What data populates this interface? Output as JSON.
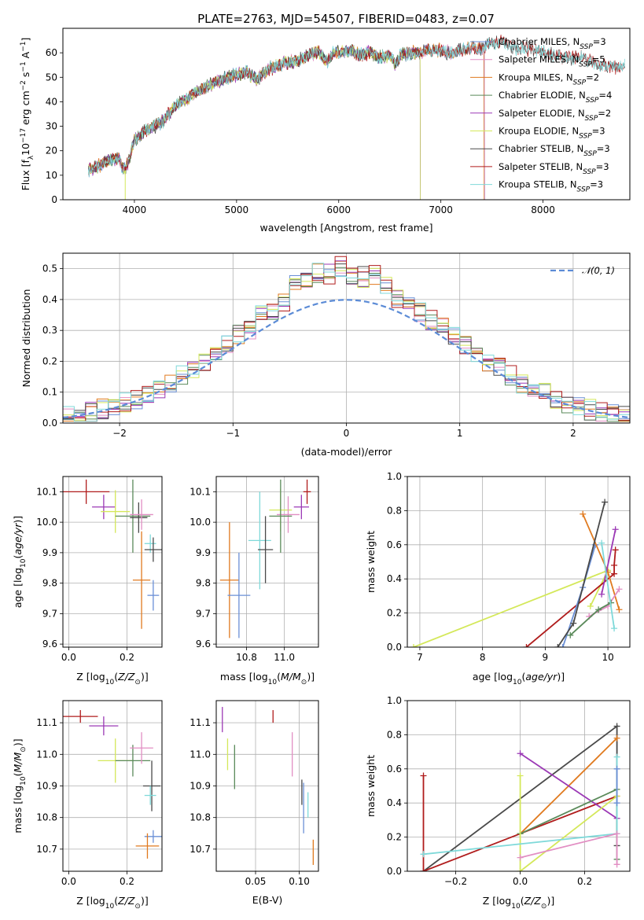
{
  "title": "PLATE=2763, MJD=54507, FIBERID=0483, z=0.07",
  "colors": {
    "Chabrier MILES": "#6a8fd6",
    "Salpeter MILES": "#e28ec3",
    "Kroupa MILES": "#e07a1f",
    "Chabrier ELODIE": "#5a8a5a",
    "Salpeter ELODIE": "#9b39b5",
    "Kroupa ELODIE": "#d4e85a",
    "Chabrier STELIB": "#4a4a4a",
    "Salpeter STELIB": "#b01c1c",
    "Kroupa STELIB": "#7fd9d9",
    "gauss": "#5b8bd6"
  },
  "chart_data": [
    {
      "id": "spectrum",
      "type": "line",
      "title": "PLATE=2763, MJD=54507, FIBERID=0483, z=0.07",
      "xlabel": "wavelength [Angstrom, rest frame]",
      "ylabel": "Flux [fλ10⁻¹⁷ erg cm⁻² s⁻¹ A⁻¹]",
      "xlim": [
        3300,
        8850
      ],
      "ylim": [
        0,
        70
      ],
      "xticks": [
        4000,
        5000,
        6000,
        7000,
        8000
      ],
      "yticks": [
        0,
        10,
        20,
        30,
        40,
        50,
        60
      ],
      "legend": "upper right",
      "legend_entries": [
        {
          "label": "Chabrier MILES",
          "nssp": "3"
        },
        {
          "label": "Salpeter MILES",
          "nssp": "5"
        },
        {
          "label": "Kroupa MILES",
          "nssp": "2"
        },
        {
          "label": "Chabrier ELODIE",
          "nssp": "4"
        },
        {
          "label": "Salpeter ELODIE",
          "nssp": "2"
        },
        {
          "label": "Kroupa ELODIE",
          "nssp": "3"
        },
        {
          "label": "Chabrier STELIB",
          "nssp": "3"
        },
        {
          "label": "Salpeter STELIB",
          "nssp": "3"
        },
        {
          "label": "Kroupa STELIB",
          "nssp": "3"
        }
      ],
      "continuum": [
        [
          3550,
          12
        ],
        [
          3650,
          14
        ],
        [
          3750,
          16
        ],
        [
          3850,
          17
        ],
        [
          3900,
          12
        ],
        [
          3950,
          16
        ],
        [
          4000,
          24
        ],
        [
          4100,
          28
        ],
        [
          4200,
          30
        ],
        [
          4300,
          33
        ],
        [
          4400,
          38
        ],
        [
          4500,
          41
        ],
        [
          4600,
          44
        ],
        [
          4700,
          46
        ],
        [
          4800,
          48
        ],
        [
          4900,
          50
        ],
        [
          5000,
          51
        ],
        [
          5100,
          52
        ],
        [
          5200,
          49
        ],
        [
          5300,
          53
        ],
        [
          5400,
          55
        ],
        [
          5500,
          56
        ],
        [
          5600,
          57
        ],
        [
          5700,
          59
        ],
        [
          5800,
          60
        ],
        [
          5890,
          56
        ],
        [
          5950,
          60
        ],
        [
          6000,
          60
        ],
        [
          6100,
          61
        ],
        [
          6200,
          59
        ],
        [
          6300,
          60
        ],
        [
          6400,
          58
        ],
        [
          6500,
          59
        ],
        [
          6563,
          55
        ],
        [
          6600,
          59
        ],
        [
          6700,
          60
        ],
        [
          6800,
          60
        ],
        [
          6900,
          61
        ],
        [
          7000,
          61
        ],
        [
          7100,
          60
        ],
        [
          7200,
          61
        ],
        [
          7300,
          62
        ],
        [
          7400,
          62
        ],
        [
          7500,
          64
        ],
        [
          7600,
          65
        ],
        [
          7700,
          62
        ],
        [
          7800,
          62
        ],
        [
          7900,
          61
        ],
        [
          8000,
          61
        ],
        [
          8100,
          59
        ],
        [
          8200,
          58
        ],
        [
          8300,
          58
        ],
        [
          8400,
          58
        ],
        [
          8500,
          56
        ],
        [
          8600,
          55
        ],
        [
          8700,
          54
        ],
        [
          8800,
          55
        ]
      ],
      "endpoints": {
        "Chabrier MILES": 7430,
        "Salpeter MILES": 7430,
        "Kroupa MILES": 7420,
        "Chabrier ELODIE": 6800,
        "Salpeter ELODIE": 6800,
        "Kroupa ELODIE": 6800,
        "Chabrier STELIB": 8800,
        "Salpeter STELIB": 8800,
        "Kroupa STELIB": 8800
      }
    },
    {
      "id": "residuals",
      "type": "histogram",
      "xlabel": "(data-model)/error",
      "ylabel": "Normed distribution",
      "xlim": [
        -2.5,
        2.5
      ],
      "ylim": [
        0,
        0.55
      ],
      "xticks": [
        -2,
        -1,
        0,
        1,
        2
      ],
      "yticks": [
        0.0,
        0.1,
        0.2,
        0.3,
        0.4,
        0.5
      ],
      "legend": "upper right",
      "gauss_label": "𝒩(0, 1)",
      "bin_width": 0.1,
      "bin_start": -2.5,
      "base_offsets": [
        0.0,
        0.0,
        0.0,
        0.0,
        0.0,
        0.0,
        0.0,
        0.0,
        0.0,
        0.0,
        0.0,
        0.0,
        0.0,
        0.0,
        0.0,
        0.01,
        -0.01,
        0.02,
        0.0,
        0.01,
        0.05,
        0.04,
        0.06,
        0.05,
        0.07,
        0.03,
        0.04,
        0.05,
        0.03,
        0.01,
        0.02,
        0.0,
        0.0,
        0.0,
        0.0,
        0.0,
        0.0,
        0.0,
        0.0,
        0.0,
        0.0,
        0.0,
        0.0,
        0.0,
        0.0,
        0.0,
        0.0,
        0.0,
        0.0,
        0.0
      ]
    },
    {
      "id": "age-vs-Z",
      "type": "scatter",
      "xlabel": "Z [log₁₀(Z/Z⊙)]",
      "ylabel": "age  [log₁₀(age/yr)]",
      "xlim": [
        -0.02,
        0.32
      ],
      "ylim": [
        9.59,
        10.15
      ],
      "xticks": [
        0.0,
        0.2
      ],
      "yticks": [
        9.6,
        9.7,
        9.8,
        9.9,
        10.0,
        10.1
      ],
      "points": [
        {
          "model": "Salpeter STELIB",
          "x": 0.06,
          "y": 10.1,
          "xerr": 0.08,
          "yerr": 0.04
        },
        {
          "model": "Salpeter ELODIE",
          "x": 0.12,
          "y": 10.05,
          "xerr": 0.04,
          "yerr": 0.04
        },
        {
          "model": "Kroupa ELODIE",
          "x": 0.16,
          "y": 10.035,
          "xerr": 0.05,
          "yerr": 0.07
        },
        {
          "model": "Chabrier ELODIE",
          "x": 0.22,
          "y": 10.02,
          "xerr": 0.06,
          "yerr": 0.12
        },
        {
          "model": "Chabrier STELIB",
          "x": 0.24,
          "y": 10.015,
          "xerr": 0.03,
          "yerr": 0.05
        },
        {
          "model": "Salpeter MILES",
          "x": 0.25,
          "y": 10.025,
          "xerr": 0.04,
          "yerr": 0.05
        },
        {
          "model": "Kroupa STELIB",
          "x": 0.28,
          "y": 9.93,
          "xerr": 0.02,
          "yerr": 0.03
        },
        {
          "model": "Chabrier STELIB",
          "x": 0.29,
          "y": 9.91,
          "xerr": 0.03,
          "yerr": 0.04
        },
        {
          "model": "Kroupa MILES",
          "x": 0.25,
          "y": 9.81,
          "xerr": 0.03,
          "yerr": 0.16
        },
        {
          "model": "Chabrier MILES",
          "x": 0.29,
          "y": 9.76,
          "xerr": 0.02,
          "yerr": 0.05
        }
      ]
    },
    {
      "id": "age-vs-mass",
      "type": "scatter",
      "xlabel": "mass [log₁₀(M/M⊙)]",
      "ylabel": "",
      "xlim": [
        10.64,
        11.18
      ],
      "ylim": [
        9.59,
        10.15
      ],
      "xticks": [
        10.8,
        11.0
      ],
      "yticks": [
        9.6,
        9.7,
        9.8,
        9.9,
        10.0,
        10.1
      ],
      "points": [
        {
          "model": "Salpeter STELIB",
          "x": 11.12,
          "y": 10.1,
          "xerr": 0.02,
          "yerr": 0.04
        },
        {
          "model": "Salpeter ELODIE",
          "x": 11.09,
          "y": 10.05,
          "xerr": 0.04,
          "yerr": 0.04
        },
        {
          "model": "Kroupa ELODIE",
          "x": 10.98,
          "y": 10.04,
          "xerr": 0.06,
          "yerr": 0.07
        },
        {
          "model": "Salpeter MILES",
          "x": 11.02,
          "y": 10.025,
          "xerr": 0.06,
          "yerr": 0.06
        },
        {
          "model": "Chabrier ELODIE",
          "x": 10.98,
          "y": 10.02,
          "xerr": 0.06,
          "yerr": 0.12
        },
        {
          "model": "Kroupa STELIB",
          "x": 10.87,
          "y": 9.94,
          "xerr": 0.06,
          "yerr": 0.16
        },
        {
          "model": "Chabrier STELIB",
          "x": 10.9,
          "y": 9.91,
          "xerr": 0.04,
          "yerr": 0.11
        },
        {
          "model": "Kroupa MILES",
          "x": 10.71,
          "y": 9.81,
          "xerr": 0.05,
          "yerr": 0.19
        },
        {
          "model": "Chabrier MILES",
          "x": 10.76,
          "y": 9.76,
          "xerr": 0.06,
          "yerr": 0.14
        }
      ]
    },
    {
      "id": "weight-vs-age",
      "type": "line",
      "xlabel": "age  [log₁₀(age/yr)]",
      "ylabel": "mass weight",
      "xlim": [
        6.8,
        10.35
      ],
      "ylim": [
        0,
        1.0
      ],
      "xticks": [
        7,
        8,
        9,
        10
      ],
      "yticks": [
        0.0,
        0.2,
        0.4,
        0.6,
        0.8,
        1.0
      ],
      "series": [
        {
          "model": "Kroupa ELODIE",
          "x": [
            6.9,
            10.0,
            9.72
          ],
          "y": [
            0.0,
            0.45,
            0.24
          ]
        },
        {
          "model": "Salpeter STELIB",
          "x": [
            8.7,
            10.1,
            10.1,
            10.12
          ],
          "y": [
            0.0,
            0.43,
            0.48,
            0.57
          ]
        },
        {
          "model": "Chabrier MILES",
          "x": [
            9.28,
            9.6,
            9.8
          ],
          "y": [
            0.0,
            0.35,
            0.6
          ]
        },
        {
          "model": "Kroupa MILES",
          "x": [
            9.6,
            10.0,
            10.18
          ],
          "y": [
            0.78,
            0.44,
            0.22
          ]
        },
        {
          "model": "Chabrier STELIB",
          "x": [
            9.2,
            9.45,
            9.95
          ],
          "y": [
            0.0,
            0.14,
            0.85
          ]
        },
        {
          "model": "Salpeter ELODIE",
          "x": [
            9.9,
            10.12
          ],
          "y": [
            0.31,
            0.69
          ]
        },
        {
          "model": "Salpeter MILES",
          "x": [
            9.7,
            10.0,
            10.18
          ],
          "y": [
            0.18,
            0.24,
            0.34
          ]
        },
        {
          "model": "Chabrier ELODIE",
          "x": [
            9.4,
            9.85,
            10.05
          ],
          "y": [
            0.07,
            0.22,
            0.26
          ]
        },
        {
          "model": "Kroupa STELIB",
          "x": [
            9.9,
            10.1
          ],
          "y": [
            0.61,
            0.11
          ]
        }
      ]
    },
    {
      "id": "mass-vs-Z",
      "type": "scatter",
      "xlabel": "Z [log₁₀(Z/Z⊙)]",
      "ylabel": "mass [log₁₀(M/M⊙)]",
      "xlim": [
        -0.02,
        0.32
      ],
      "ylim": [
        10.63,
        11.17
      ],
      "xticks": [
        0.0,
        0.2
      ],
      "yticks": [
        10.7,
        10.8,
        10.9,
        11.0,
        11.1
      ],
      "points": [
        {
          "model": "Salpeter STELIB",
          "x": 0.04,
          "y": 11.12,
          "xerr": 0.06,
          "yerr": 0.02
        },
        {
          "model": "Salpeter ELODIE",
          "x": 0.12,
          "y": 11.09,
          "xerr": 0.05,
          "yerr": 0.03
        },
        {
          "model": "Kroupa ELODIE",
          "x": 0.16,
          "y": 10.98,
          "xerr": 0.06,
          "yerr": 0.07
        },
        {
          "model": "Chabrier ELODIE",
          "x": 0.22,
          "y": 10.98,
          "xerr": 0.06,
          "yerr": 0.05
        },
        {
          "model": "Salpeter MILES",
          "x": 0.25,
          "y": 11.02,
          "xerr": 0.04,
          "yerr": 0.05
        },
        {
          "model": "Chabrier STELIB",
          "x": 0.285,
          "y": 10.9,
          "xerr": 0.03,
          "yerr": 0.08
        },
        {
          "model": "Kroupa STELIB",
          "x": 0.28,
          "y": 10.87,
          "xerr": 0.02,
          "yerr": 0.03
        },
        {
          "model": "Chabrier MILES",
          "x": 0.29,
          "y": 10.74,
          "xerr": 0.03,
          "yerr": 0.02
        },
        {
          "model": "Kroupa MILES",
          "x": 0.27,
          "y": 10.71,
          "xerr": 0.04,
          "yerr": 0.04
        }
      ]
    },
    {
      "id": "mass-vs-EBV",
      "type": "scatter",
      "xlabel": "E(B-V)",
      "ylabel": "",
      "xlim": [
        0.005,
        0.122
      ],
      "ylim": [
        10.63,
        11.17
      ],
      "xticks": [
        0.05,
        0.1
      ],
      "yticks": [
        10.7,
        10.8,
        10.9,
        11.0,
        11.1
      ],
      "points": [
        {
          "model": "Salpeter ELODIE",
          "x": 0.012,
          "y": 11.11,
          "yerr": 0.04
        },
        {
          "model": "Kroupa ELODIE",
          "x": 0.018,
          "y": 11.0,
          "yerr": 0.05
        },
        {
          "model": "Chabrier ELODIE",
          "x": 0.026,
          "y": 10.96,
          "yerr": 0.07
        },
        {
          "model": "Salpeter STELIB",
          "x": 0.07,
          "y": 11.12,
          "yerr": 0.02
        },
        {
          "model": "Salpeter MILES",
          "x": 0.092,
          "y": 11.0,
          "yerr": 0.07
        },
        {
          "model": "Chabrier STELIB",
          "x": 0.103,
          "y": 10.88,
          "yerr": 0.04
        },
        {
          "model": "Chabrier MILES",
          "x": 0.105,
          "y": 10.83,
          "yerr": 0.08
        },
        {
          "model": "Kroupa STELIB",
          "x": 0.11,
          "y": 10.84,
          "yerr": 0.04
        },
        {
          "model": "Kroupa MILES",
          "x": 0.116,
          "y": 10.69,
          "yerr": 0.04
        }
      ]
    },
    {
      "id": "weight-vs-Z",
      "type": "line",
      "xlabel": "Z [log₁₀(Z/Z⊙)]",
      "ylabel": "mass weight",
      "xlim": [
        -0.35,
        0.34
      ],
      "ylim": [
        0,
        1.0
      ],
      "xticks": [
        -0.2,
        0.0,
        0.2
      ],
      "yticks": [
        0.0,
        0.2,
        0.4,
        0.6,
        0.8,
        1.0
      ],
      "series": [
        {
          "model": "Chabrier STELIB",
          "x": [
            -0.3,
            0.3,
            0.3
          ],
          "y": [
            0.0,
            0.85,
            0.15
          ]
        },
        {
          "model": "Salpeter STELIB",
          "x": [
            -0.3,
            -0.3,
            0.3
          ],
          "y": [
            0.56,
            0.0,
            0.44
          ]
        },
        {
          "model": "Kroupa MILES",
          "x": [
            0.0,
            0.3
          ],
          "y": [
            0.22,
            0.78
          ]
        },
        {
          "model": "Salpeter ELODIE",
          "x": [
            0.0,
            0.3
          ],
          "y": [
            0.69,
            0.31
          ]
        },
        {
          "model": "Chabrier ELODIE",
          "x": [
            0.0,
            0.3,
            0.3
          ],
          "y": [
            0.22,
            0.48,
            0.07
          ]
        },
        {
          "model": "Kroupa ELODIE",
          "x": [
            0.0,
            0.0,
            0.3
          ],
          "y": [
            0.56,
            0.0,
            0.44
          ]
        },
        {
          "model": "Kroupa STELIB",
          "x": [
            -0.3,
            0.3,
            0.3
          ],
          "y": [
            0.1,
            0.22,
            0.67
          ]
        },
        {
          "model": "Salpeter MILES",
          "x": [
            0.0,
            0.3,
            0.3
          ],
          "y": [
            0.08,
            0.22,
            0.04
          ]
        },
        {
          "model": "Chabrier MILES",
          "x": [
            0.3,
            0.3
          ],
          "y": [
            0.4,
            0.6
          ]
        }
      ]
    }
  ]
}
